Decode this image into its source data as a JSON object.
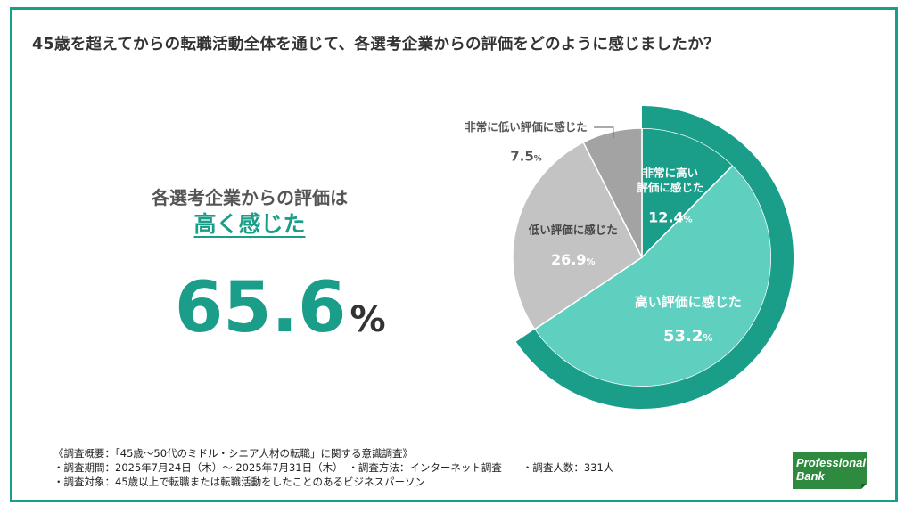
{
  "title": "45歳を超えてからの転職活動全体を通じて、各選考企業からの評価をどのように感じましたか？",
  "summary": {
    "line1": "各選考企業からの評価は",
    "line2": "高く感じた",
    "value": "65.6",
    "unit": "%"
  },
  "chart_data": {
    "type": "pie",
    "slices": [
      {
        "label": "非常に高い評価に感じた",
        "label_lines": [
          "非常に高い",
          "評価に感じた"
        ],
        "value": 12.4,
        "color": "#1a9e8a"
      },
      {
        "label": "高い評価に感じた",
        "label_lines": [
          "高い評価に感じた"
        ],
        "value": 53.2,
        "color": "#5fcfbf"
      },
      {
        "label": "低い評価に感じた",
        "label_lines": [
          "低い評価に感じた"
        ],
        "value": 26.9,
        "color": "#c3c3c3"
      },
      {
        "label": "非常に低い評価に感じた",
        "label_lines": [
          "非常に低い評価に感じた"
        ],
        "value": 7.5,
        "color": "#a3a3a3"
      }
    ],
    "value_unit": "%",
    "highlight_ring": {
      "covers": [
        "非常に高い評価に感じた",
        "高い評価に感じた"
      ],
      "color": "#1a9e8a"
    }
  },
  "notes": [
    "《調査概要：「45歳〜50代のミドル・シニア人材の転職」に関する意識調査》",
    "・調査期間：2025年7月24日（木）〜 2025年7月31日（木）　・調査方法：インターネット調査　　・調査人数：331人",
    "・調査対象：45歳以上で転職または転職活動をしたことのあるビジネスパーソン"
  ],
  "logo": {
    "line1": "Professional",
    "line2": "Bank",
    "color": "#2d8a3e"
  }
}
